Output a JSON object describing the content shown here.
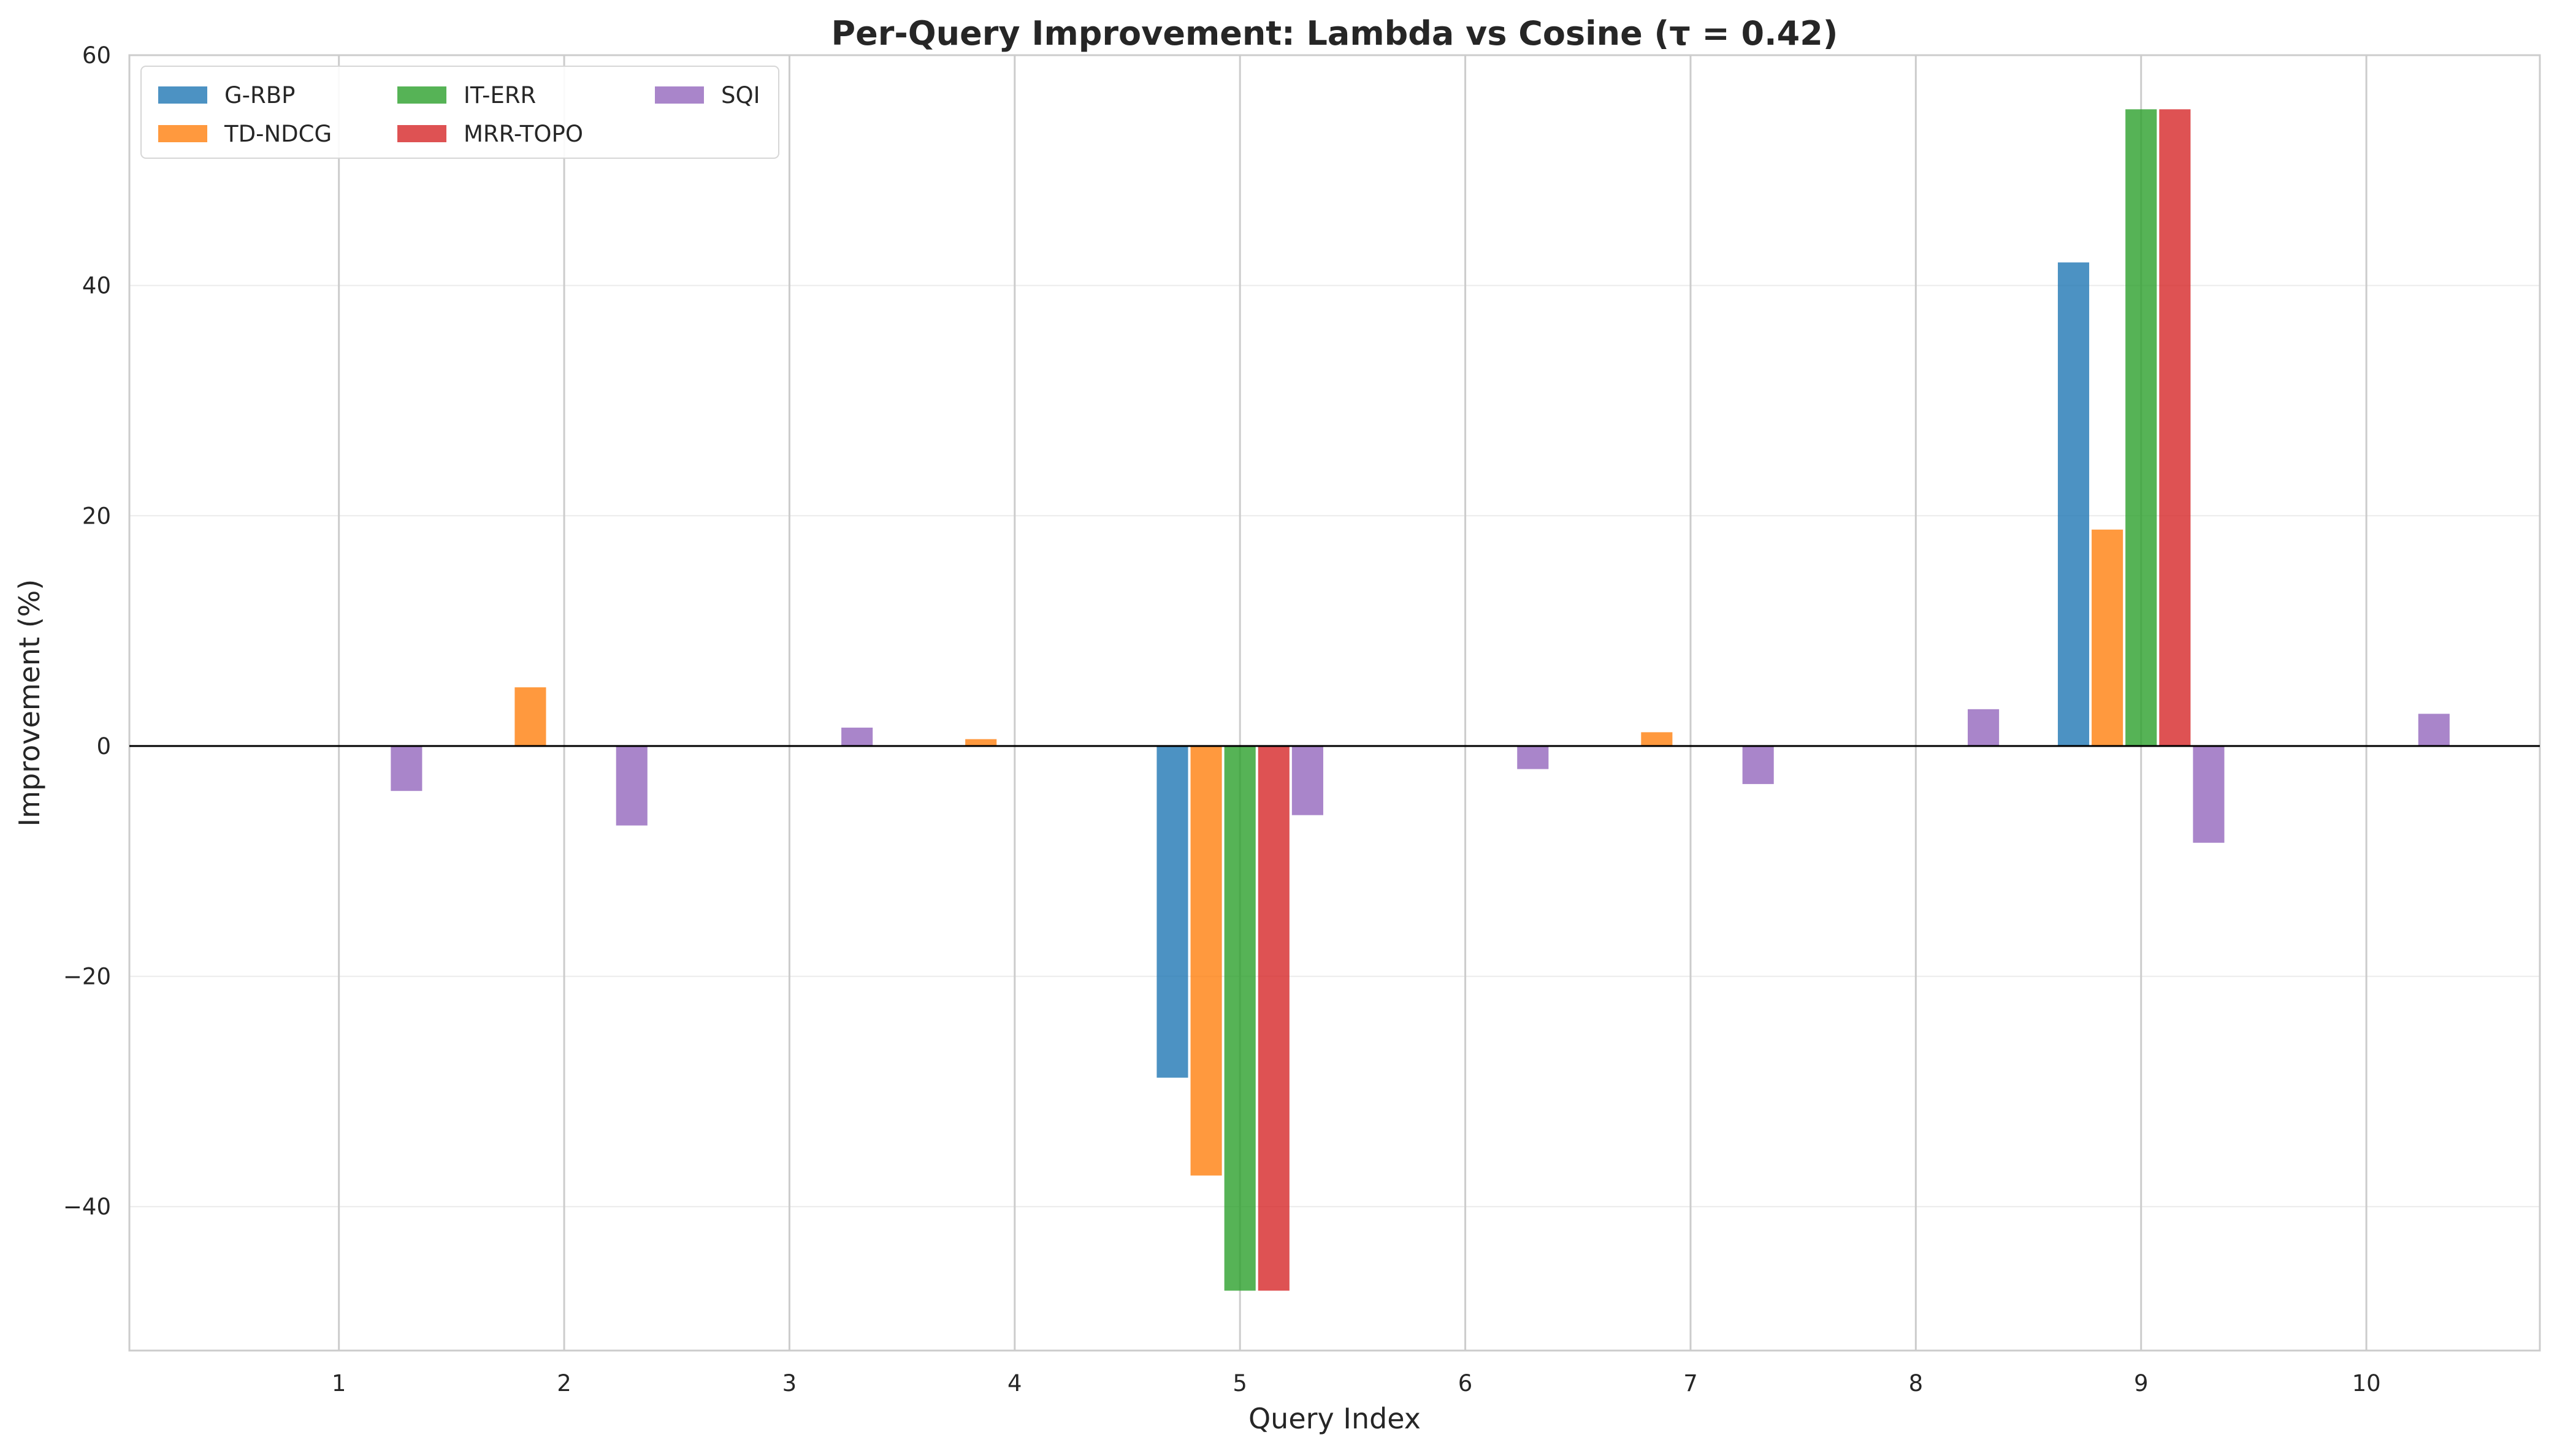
{
  "chart_data": {
    "type": "bar",
    "title": "Per-Query Improvement: Lambda vs Cosine (τ = 0.42)",
    "xlabel": "Query Index",
    "ylabel": "Improvement (%)",
    "categories": [
      "1",
      "2",
      "3",
      "4",
      "5",
      "6",
      "7",
      "8",
      "9",
      "10"
    ],
    "ylim": [
      -52.5,
      60
    ],
    "yticks": [
      -40,
      -20,
      0,
      20,
      40,
      60
    ],
    "ytick_labels": [
      "−40",
      "−20",
      "0",
      "20",
      "40",
      "60"
    ],
    "grid": true,
    "legend": {
      "placement": "top-left",
      "columns": 3
    },
    "series": [
      {
        "name": "G-RBP",
        "color": "#1f77b4",
        "values": [
          0,
          0,
          0,
          0,
          -28.8,
          0,
          0,
          0,
          42.0,
          0
        ]
      },
      {
        "name": "TD-NDCG",
        "color": "#ff7f0e",
        "values": [
          0,
          5.1,
          0,
          0.6,
          -37.3,
          0,
          1.2,
          0,
          18.8,
          0
        ]
      },
      {
        "name": "IT-ERR",
        "color": "#2ca02c",
        "values": [
          0,
          0,
          0,
          0,
          -47.3,
          0,
          0,
          0,
          55.3,
          0
        ]
      },
      {
        "name": "MRR-TOPO",
        "color": "#d62728",
        "values": [
          0,
          0,
          0,
          0,
          -47.3,
          0,
          0,
          0,
          55.3,
          0
        ]
      },
      {
        "name": "SQI",
        "color": "#9467bd",
        "values": [
          -3.9,
          -6.9,
          1.6,
          0,
          -6.0,
          -2.0,
          -3.3,
          3.2,
          -8.4,
          2.8
        ]
      }
    ]
  }
}
